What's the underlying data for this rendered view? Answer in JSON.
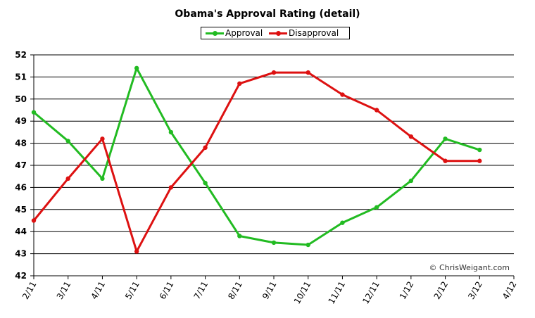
{
  "chart_data": {
    "type": "line",
    "title": "Obama's Approval Rating (detail)",
    "xlabel": "",
    "ylabel": "",
    "x_ticks": [
      "2/11",
      "3/11",
      "4/11",
      "5/11",
      "6/11",
      "7/11",
      "8/11",
      "9/11",
      "10/11",
      "11/11",
      "12/11",
      "1/12",
      "2/12",
      "3/12",
      "4/12"
    ],
    "ylim": [
      42,
      52
    ],
    "y_ticks": [
      42,
      43,
      44,
      45,
      46,
      47,
      48,
      49,
      50,
      51,
      52
    ],
    "grid": true,
    "legend_position": "top-center",
    "series": [
      {
        "name": "Approval",
        "color": "#22bb22",
        "values": [
          49.4,
          48.1,
          46.4,
          51.4,
          48.5,
          46.2,
          43.8,
          43.5,
          43.4,
          44.4,
          45.1,
          46.3,
          48.2,
          47.7
        ]
      },
      {
        "name": "Disapproval",
        "color": "#dd1111",
        "values": [
          44.5,
          46.4,
          48.2,
          43.1,
          46.0,
          47.8,
          50.7,
          51.2,
          51.2,
          50.2,
          49.5,
          48.3,
          47.2,
          47.2
        ]
      }
    ],
    "annotation": "© ChrisWeigant.com"
  }
}
